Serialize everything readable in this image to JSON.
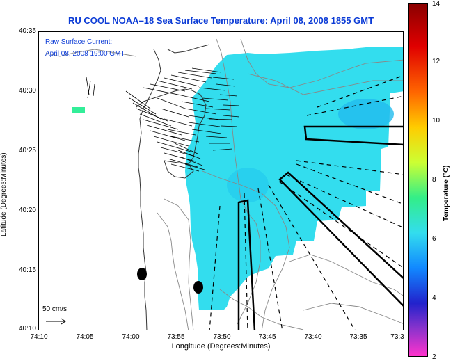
{
  "title": "RU COOL  NOAA–18  Sea Surface Temperature:  April 08, 2008 1855 GMT",
  "overlay": {
    "line1": "Raw Surface Current:",
    "line2": "April 08, 2008 19:00 GMT"
  },
  "scale": {
    "label": "50 cm/s",
    "value_cm_s": 50
  },
  "axes": {
    "ylabel": "Latitude (Degrees:Minutes)",
    "xlabel": "Longitude (Degrees:Minutes)",
    "yticks": [
      "40:35",
      "40:30",
      "40:25",
      "40:20",
      "40:15",
      "40:10"
    ],
    "xticks": [
      "74:10",
      "74:05",
      "74:00",
      "73:55",
      "73:50",
      "73:45",
      "73:40",
      "73:35",
      "73:3"
    ]
  },
  "colorbar": {
    "label": "Temperature (°C)",
    "min": 2,
    "max": 14,
    "ticks": [
      "14",
      "12",
      "10",
      "8",
      "6",
      "4",
      "2"
    ]
  },
  "colors": {
    "title": "#0b3bd6",
    "sst_main": "#33ddee",
    "sst_warm_patch": "#33ee99"
  }
}
